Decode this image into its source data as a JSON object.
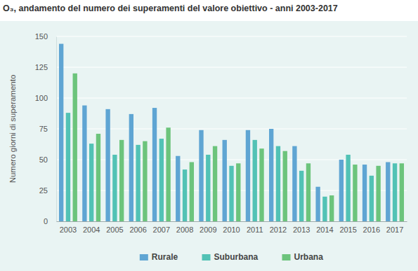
{
  "chart_data": {
    "type": "bar",
    "title": "O₃, andamento del numero dei superamenti  del valore obiettivo - anni 2003-2017",
    "y_label": "Numero giorni di superamento",
    "categories": [
      "2003",
      "2004",
      "2005",
      "2006",
      "2007",
      "2008",
      "2009",
      "2010",
      "2011",
      "2012",
      "2013",
      "2014",
      "2015",
      "2016",
      "2017"
    ],
    "series": [
      {
        "name": "Rurale",
        "color": "#5fa5d3",
        "values": [
          144,
          94,
          91,
          87,
          92,
          53,
          74,
          66,
          74,
          75,
          61,
          28,
          50,
          46,
          48
        ]
      },
      {
        "name": "Suburbana",
        "color": "#52c2b5",
        "values": [
          88,
          63,
          54,
          62,
          67,
          42,
          54,
          45,
          66,
          61,
          41,
          20,
          54,
          37,
          47
        ]
      },
      {
        "name": "Urbana",
        "color": "#6cc47c",
        "values": [
          120,
          71,
          66,
          65,
          76,
          48,
          61,
          47,
          59,
          57,
          47,
          21,
          46,
          45,
          47
        ]
      }
    ],
    "ylim": [
      0,
      150
    ],
    "yticks": [
      0,
      25,
      50,
      75,
      100,
      125,
      150
    ],
    "grid": true,
    "legend": "bottom"
  }
}
